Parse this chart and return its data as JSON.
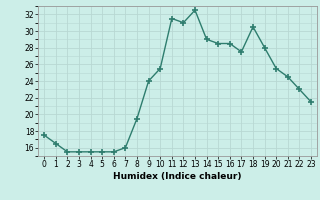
{
  "x": [
    0,
    1,
    2,
    3,
    4,
    5,
    6,
    7,
    8,
    9,
    10,
    11,
    12,
    13,
    14,
    15,
    16,
    17,
    18,
    19,
    20,
    21,
    22,
    23
  ],
  "y": [
    17.5,
    16.5,
    15.5,
    15.5,
    15.5,
    15.5,
    15.5,
    16.0,
    19.5,
    24.0,
    25.5,
    31.5,
    31.0,
    32.5,
    29.0,
    28.5,
    28.5,
    27.5,
    30.5,
    28.0,
    25.5,
    24.5,
    23.0,
    21.5
  ],
  "line_color": "#2e7d6e",
  "marker": "+",
  "markersize": 4,
  "markeredgewidth": 1.2,
  "linewidth": 1.0,
  "xlabel": "Humidex (Indice chaleur)",
  "ylabel": "",
  "xlim": [
    -0.5,
    23.5
  ],
  "ylim": [
    15.0,
    33.0
  ],
  "yticks": [
    16,
    18,
    20,
    22,
    24,
    26,
    28,
    30,
    32
  ],
  "xticks": [
    0,
    1,
    2,
    3,
    4,
    5,
    6,
    7,
    8,
    9,
    10,
    11,
    12,
    13,
    14,
    15,
    16,
    17,
    18,
    19,
    20,
    21,
    22,
    23
  ],
  "bg_color": "#cceee8",
  "grid_color": "#b8d8d3",
  "label_fontsize": 6.5,
  "tick_fontsize": 5.5
}
